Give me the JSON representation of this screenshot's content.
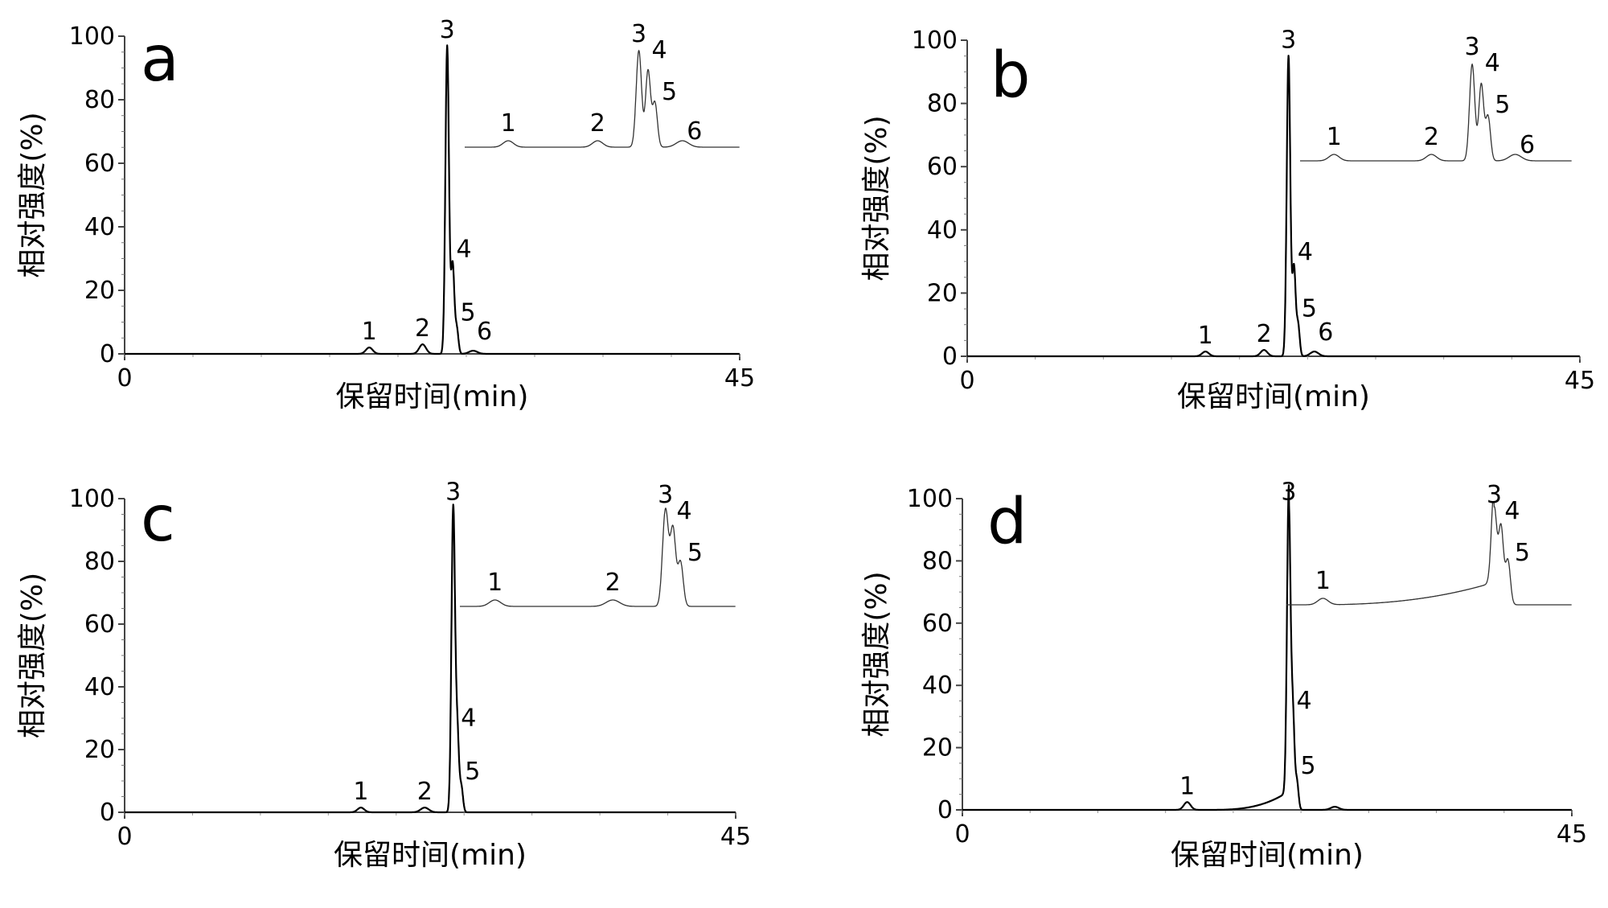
{
  "chart_data": [
    {
      "type": "line",
      "panel_label": "a",
      "xlabel": "保留时间(min)",
      "ylabel": "相对强度(%)",
      "xlim": [
        0,
        45
      ],
      "ylim": [
        0,
        100
      ],
      "x_ticks": [
        "0",
        "45"
      ],
      "y_ticks": [
        "0",
        "20",
        "40",
        "60",
        "80",
        "100"
      ],
      "peaks": [
        {
          "label": "1",
          "x": 17.9,
          "y": 2.0,
          "width": 0.25
        },
        {
          "label": "2",
          "x": 21.8,
          "y": 3.0,
          "width": 0.25
        },
        {
          "label": "3",
          "x": 23.6,
          "y": 97.0,
          "width": 0.13
        },
        {
          "label": "4",
          "x": 24.0,
          "y": 28.0,
          "width": 0.12
        },
        {
          "label": "5",
          "x": 24.3,
          "y": 8.0,
          "width": 0.12
        },
        {
          "label": "6",
          "x": 25.5,
          "y": 1.0,
          "width": 0.3
        }
      ],
      "inset": {
        "peaks": [
          {
            "label": "1",
            "x": 17.9
          },
          {
            "label": "2",
            "x": 21.8
          },
          {
            "label": "3",
            "x": 23.6
          },
          {
            "label": "4",
            "x": 24.0
          },
          {
            "label": "5",
            "x": 24.3
          },
          {
            "label": "6",
            "x": 25.5
          }
        ]
      }
    },
    {
      "type": "line",
      "panel_label": "b",
      "xlabel": "保留时间(min)",
      "ylabel": "相对强度(%)",
      "xlim": [
        0,
        45
      ],
      "ylim": [
        0,
        100
      ],
      "x_ticks": [
        "0",
        "45"
      ],
      "y_ticks": [
        "0",
        "20",
        "40",
        "60",
        "80",
        "100"
      ],
      "peaks": [
        {
          "label": "1",
          "x": 17.5,
          "y": 1.5,
          "width": 0.25
        },
        {
          "label": "2",
          "x": 21.8,
          "y": 2.0,
          "width": 0.25
        },
        {
          "label": "3",
          "x": 23.6,
          "y": 95.0,
          "width": 0.13
        },
        {
          "label": "4",
          "x": 24.0,
          "y": 28.0,
          "width": 0.12
        },
        {
          "label": "5",
          "x": 24.3,
          "y": 10.0,
          "width": 0.12
        },
        {
          "label": "6",
          "x": 25.5,
          "y": 1.5,
          "width": 0.3
        }
      ],
      "inset": {
        "peaks": [
          {
            "label": "1",
            "x": 17.5
          },
          {
            "label": "2",
            "x": 21.8
          },
          {
            "label": "3",
            "x": 23.6
          },
          {
            "label": "4",
            "x": 24.0
          },
          {
            "label": "5",
            "x": 24.3
          },
          {
            "label": "6",
            "x": 25.5
          }
        ]
      }
    },
    {
      "type": "line",
      "panel_label": "c",
      "xlabel": "保留时间(min)",
      "ylabel": "相对强度(%)",
      "xlim": [
        0,
        45
      ],
      "ylim": [
        0,
        100
      ],
      "x_ticks": [
        "0",
        "45"
      ],
      "y_ticks": [
        "0",
        "20",
        "40",
        "60",
        "80",
        "100"
      ],
      "peaks": [
        {
          "label": "1",
          "x": 17.4,
          "y": 1.5,
          "width": 0.25
        },
        {
          "label": "2",
          "x": 22.1,
          "y": 1.5,
          "width": 0.3
        },
        {
          "label": "3",
          "x": 24.2,
          "y": 97.0,
          "width": 0.13
        },
        {
          "label": "4",
          "x": 24.5,
          "y": 25.0,
          "width": 0.12
        },
        {
          "label": "5",
          "x": 24.8,
          "y": 8.0,
          "width": 0.12
        }
      ],
      "inset": {
        "peaks": [
          {
            "label": "1",
            "x": 17.4
          },
          {
            "label": "2",
            "x": 22.1
          },
          {
            "label": "3",
            "x": 24.2
          },
          {
            "label": "4",
            "x": 24.5
          },
          {
            "label": "5",
            "x": 24.8
          }
        ]
      }
    },
    {
      "type": "line",
      "panel_label": "d",
      "xlabel": "保留时间(min)",
      "ylabel": "相对强度(%)",
      "xlim": [
        0,
        45
      ],
      "ylim": [
        0,
        100
      ],
      "x_ticks": [
        "0",
        "45"
      ],
      "y_ticks": [
        "0",
        "20",
        "40",
        "60",
        "80",
        "100"
      ],
      "peaks": [
        {
          "label": "1",
          "x": 16.6,
          "y": 2.5,
          "width": 0.25
        },
        {
          "label": "3",
          "x": 24.1,
          "y": 97.0,
          "width": 0.13
        },
        {
          "label": "4",
          "x": 24.4,
          "y": 30.0,
          "width": 0.12
        },
        {
          "label": "5",
          "x": 24.7,
          "y": 9.0,
          "width": 0.12
        }
      ],
      "inset": {
        "peaks": [
          {
            "label": "1",
            "x": 16.6
          },
          {
            "label": "3",
            "x": 24.1
          },
          {
            "label": "4",
            "x": 24.4
          },
          {
            "label": "5",
            "x": 24.7
          }
        ]
      }
    }
  ]
}
